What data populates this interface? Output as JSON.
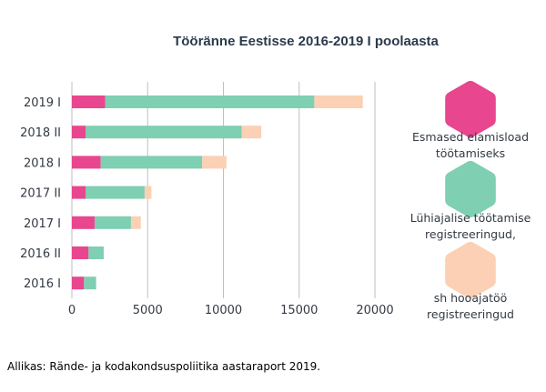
{
  "chart_data": {
    "type": "bar",
    "orientation": "horizontal",
    "stacked": true,
    "title": "Tööränne Eestisse 2016-2019 I poolaasta",
    "categories": [
      "2019 I",
      "2018 II",
      "2018 I",
      "2017 II",
      "2017 I",
      "2016 II",
      "2016 I"
    ],
    "series": [
      {
        "name": "Esmased elamisload töötamiseks",
        "color": "#e8468e",
        "values": [
          2200,
          900,
          1900,
          900,
          1500,
          1100,
          800
        ]
      },
      {
        "name": "Lühiajalise töötamise registreeringud,",
        "color": "#7fcfb2",
        "values": [
          13800,
          10300,
          6700,
          3900,
          2400,
          1000,
          800
        ]
      },
      {
        "name": "sh hooajatöö registreeringud",
        "color": "#fbd0b4",
        "values": [
          3200,
          1300,
          1600,
          450,
          650,
          0,
          0
        ]
      }
    ],
    "xticks": [
      0,
      5000,
      10000,
      15000,
      20000
    ],
    "xlim": [
      0,
      20000
    ],
    "grid": "vertical",
    "legend_position": "right",
    "xlabel": "",
    "ylabel": ""
  },
  "legend": {
    "items": [
      {
        "lines": [
          "Esmased elamisload",
          "töötamiseks"
        ]
      },
      {
        "lines": [
          "Lühiajalise töötamise",
          "registreeringud,"
        ]
      },
      {
        "lines": [
          "sh hooajatöö",
          "registreeringud"
        ]
      }
    ]
  },
  "source": "Allikas: Rände- ja kodakondsuspoliitika aastaraport 2019.",
  "colors": {
    "grid": "#bfbfbf",
    "text": "#333a44"
  }
}
